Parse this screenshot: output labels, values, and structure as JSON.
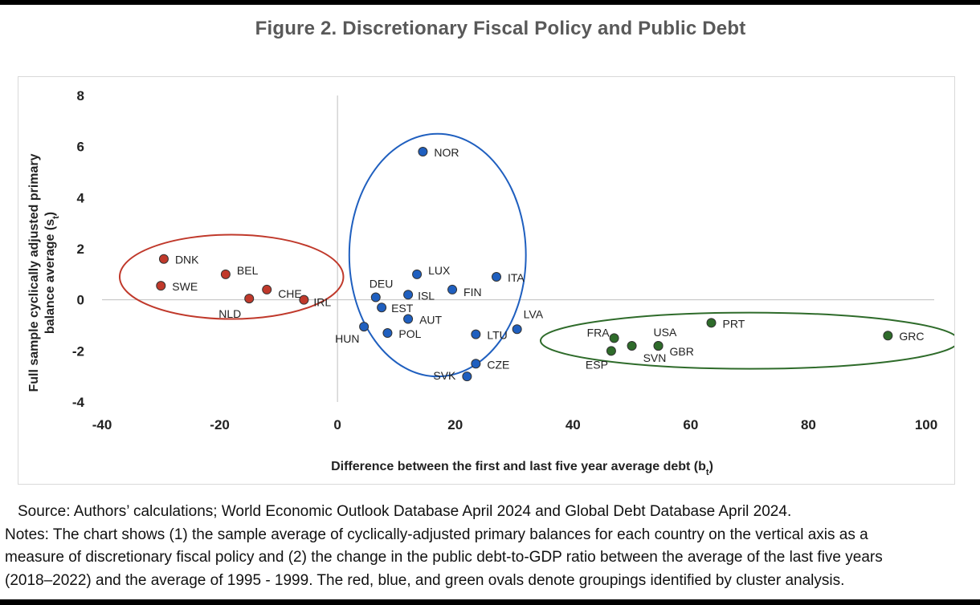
{
  "figure": {
    "title": "Figure 2. Discretionary Fiscal Policy and Public Debt",
    "source": "Source: Authors’ calculations; World Economic Outlook Database April 2024 and Global Debt Database April 2024.",
    "notes_lines": [
      "Notes: The chart shows (1) the sample average of cyclically-adjusted primary balances for each country on the vertical axis as a",
      "measure of discretionary fiscal policy and (2) the change in the public debt-to-GDP ratio between the average of the last five years",
      "(2018–2022) and the average of 1995 - 1999. The red, blue, and green ovals denote groupings identified by cluster analysis."
    ]
  },
  "chart_data": {
    "type": "scatter",
    "title": "",
    "xlabel": "Difference between the first and last five year average debt (b",
    "xlabel_sub": "t",
    "xlabel_end": ")",
    "ylabel_line1": "Full sample cyclically adjusted primary",
    "ylabel_line2": "balance average (s",
    "ylabel_sub": "t",
    "ylabel_end": ")",
    "xlim": [
      -40,
      100
    ],
    "ylim": [
      -4,
      8
    ],
    "xticks": [
      -40,
      -20,
      0,
      20,
      40,
      60,
      80,
      100
    ],
    "yticks": [
      -4,
      -2,
      0,
      2,
      4,
      6,
      8
    ],
    "grid": false,
    "colors": {
      "red": "#c0392b",
      "blue": "#1f5fbf",
      "green": "#2e6b2a"
    },
    "points": [
      {
        "label": "DNK",
        "x": -29.5,
        "y": 1.6,
        "group": "red"
      },
      {
        "label": "SWE",
        "x": -30.0,
        "y": 0.55,
        "group": "red"
      },
      {
        "label": "BEL",
        "x": -19.0,
        "y": 1.0,
        "group": "red"
      },
      {
        "label": "NLD",
        "x": -15.0,
        "y": 0.05,
        "group": "red"
      },
      {
        "label": "CHE",
        "x": -12.0,
        "y": 0.4,
        "group": "red"
      },
      {
        "label": "IRL",
        "x": -5.7,
        "y": 0.0,
        "group": "red"
      },
      {
        "label": "NOR",
        "x": 14.5,
        "y": 5.8,
        "group": "blue"
      },
      {
        "label": "LUX",
        "x": 13.5,
        "y": 1.0,
        "group": "blue"
      },
      {
        "label": "ITA",
        "x": 27.0,
        "y": 0.9,
        "group": "blue"
      },
      {
        "label": "DEU",
        "x": 6.5,
        "y": 0.1,
        "group": "blue"
      },
      {
        "label": "ISL",
        "x": 12.0,
        "y": 0.2,
        "group": "blue"
      },
      {
        "label": "FIN",
        "x": 19.5,
        "y": 0.4,
        "group": "blue"
      },
      {
        "label": "EST",
        "x": 7.5,
        "y": -0.3,
        "group": "blue"
      },
      {
        "label": "AUT",
        "x": 12.0,
        "y": -0.75,
        "group": "blue"
      },
      {
        "label": "HUN",
        "x": 4.5,
        "y": -1.05,
        "group": "blue"
      },
      {
        "label": "POL",
        "x": 8.5,
        "y": -1.3,
        "group": "blue"
      },
      {
        "label": "LTU",
        "x": 23.5,
        "y": -1.35,
        "group": "blue"
      },
      {
        "label": "LVA",
        "x": 30.5,
        "y": -1.15,
        "group": "blue"
      },
      {
        "label": "CZE",
        "x": 23.5,
        "y": -2.5,
        "group": "blue"
      },
      {
        "label": "SVK",
        "x": 22.0,
        "y": -3.0,
        "group": "blue"
      },
      {
        "label": "FRA",
        "x": 47.0,
        "y": -1.5,
        "group": "green"
      },
      {
        "label": "ESP",
        "x": 46.5,
        "y": -2.0,
        "group": "green"
      },
      {
        "label": "SVN",
        "x": 50.0,
        "y": -1.8,
        "group": "green"
      },
      {
        "label": "USA",
        "x": 54.5,
        "y": -1.8,
        "group": "green"
      },
      {
        "label": "GBR",
        "x": 54.5,
        "y": -1.8,
        "group": "green"
      },
      {
        "label": "PRT",
        "x": 63.5,
        "y": -0.9,
        "group": "green"
      },
      {
        "label": "GRC",
        "x": 93.5,
        "y": -1.4,
        "group": "green"
      }
    ],
    "ovals": [
      {
        "group": "red",
        "cx": -18.0,
        "cy": 0.9,
        "rx": 19.0,
        "ry": 1.65
      },
      {
        "group": "blue",
        "cx": 17.0,
        "cy": 1.75,
        "rx": 15.0,
        "ry": 4.75
      },
      {
        "group": "green",
        "cx": 70.0,
        "cy": -1.6,
        "rx": 35.5,
        "ry": 1.1
      }
    ]
  }
}
